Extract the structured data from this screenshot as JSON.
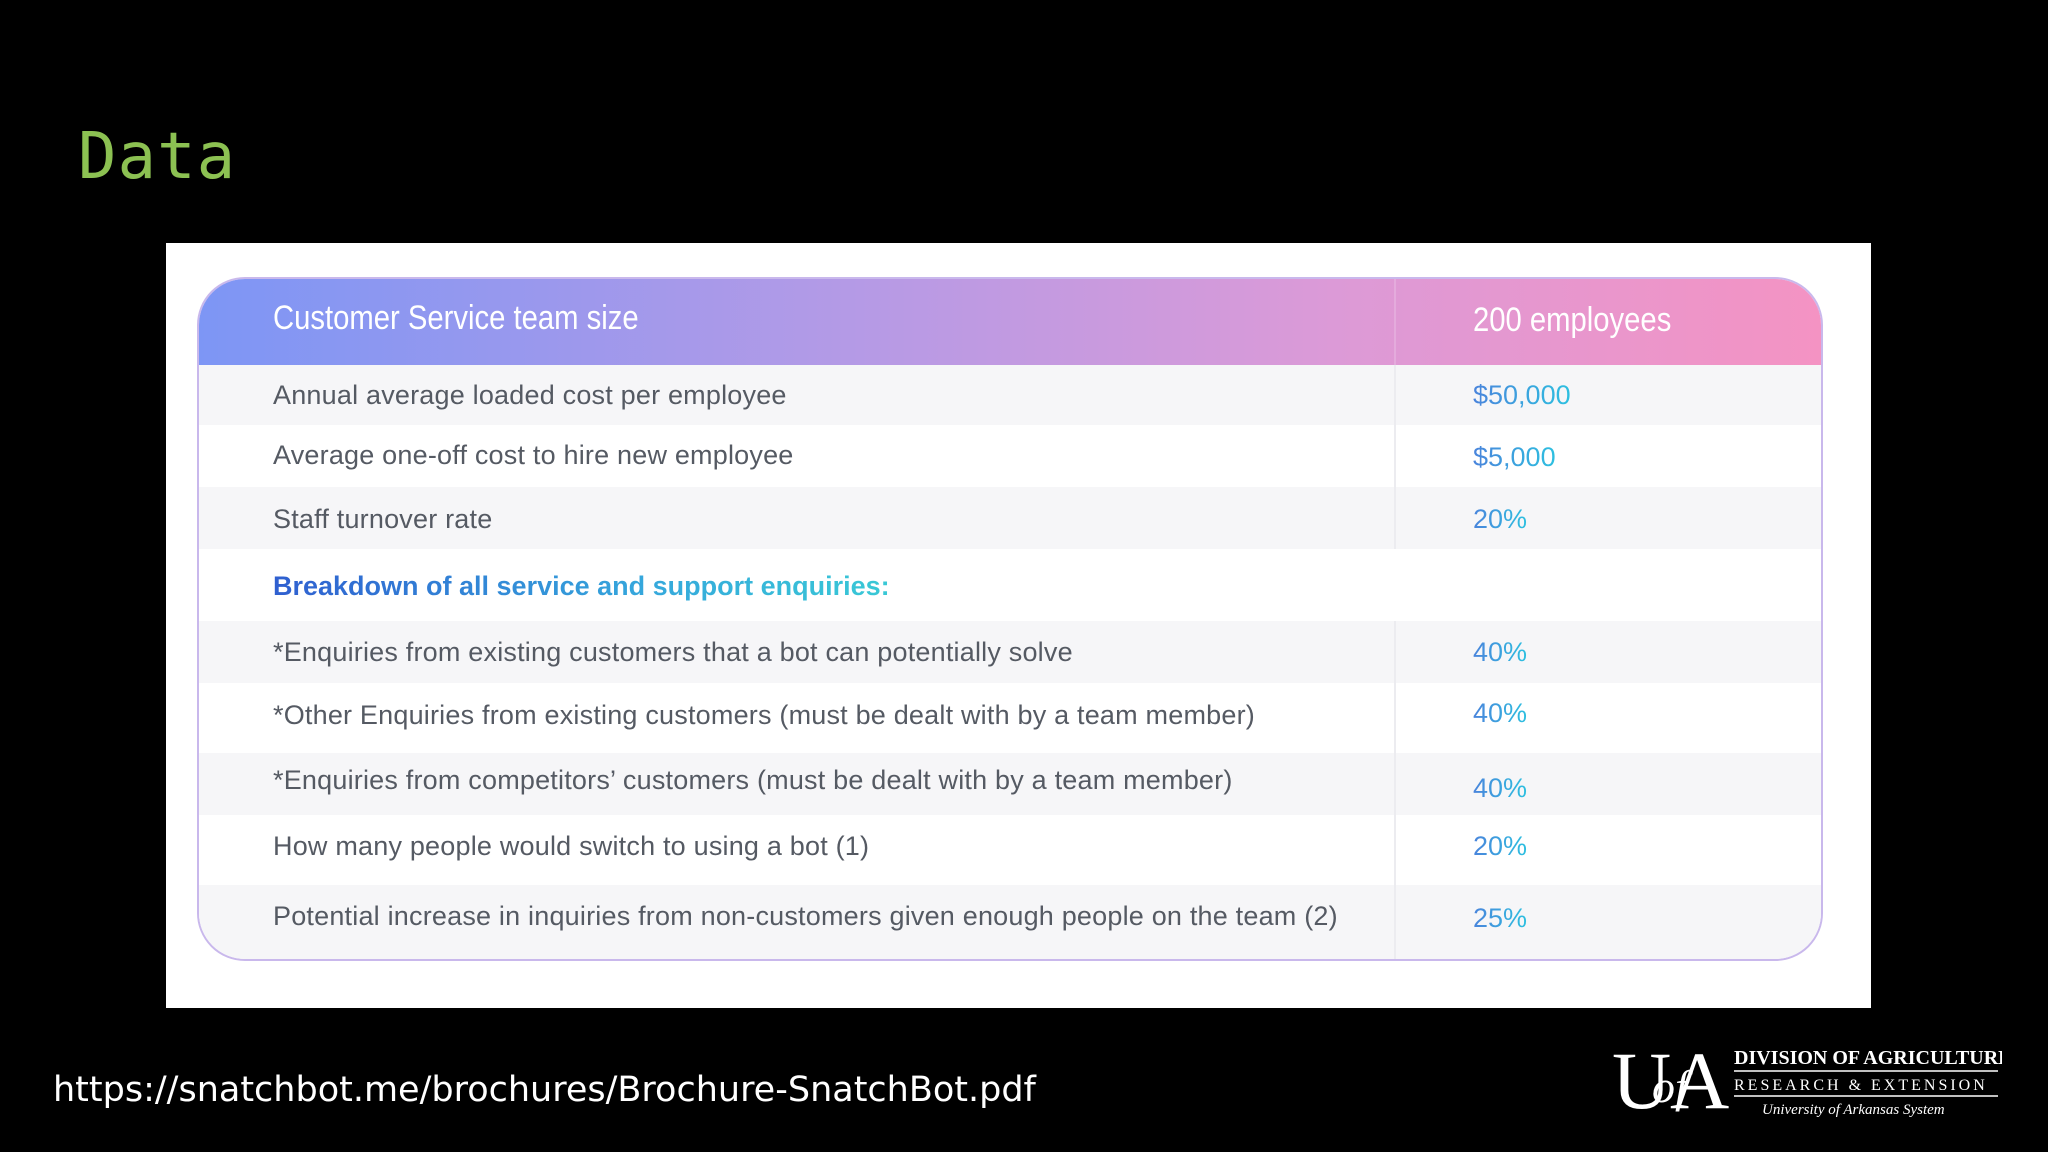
{
  "slide": {
    "title": "Data",
    "source_url": "https://snatchbot.me/brochures/Brochure-SnatchBot.pdf"
  },
  "table": {
    "header_label": "Customer Service team size",
    "header_value": "200 employees",
    "rows": [
      {
        "label": "Annual average loaded cost per employee",
        "value": "$50,000"
      },
      {
        "label": "Average one-off cost to hire new employee",
        "value": "$5,000"
      },
      {
        "label": "Staff turnover rate",
        "value": "20%"
      },
      {
        "label": "Breakdown of all service and support enquiries:",
        "value": ""
      },
      {
        "label": "*Enquiries from existing customers that a bot can potentially solve",
        "value": "40%"
      },
      {
        "label": "*Other Enquiries from existing customers (must be dealt with by a team member)",
        "value": "40%"
      },
      {
        "label": "*Enquiries from competitors’ customers (must be dealt with by a team member)",
        "value": "40%"
      },
      {
        "label": "How many people would switch to using a bot (1)",
        "value": "20%"
      },
      {
        "label": "Potential increase in inquiries from non-customers given enough people on the team (2)",
        "value": "25%"
      }
    ]
  },
  "logo": {
    "monogram": "UofA",
    "line1": "DIVISION OF AGRICULTURE",
    "line2": "RESEARCH & EXTENSION",
    "line3": "University of Arkansas System"
  },
  "colors": {
    "title": "#8cc152",
    "header_gradient_start": "#7d96f5",
    "header_gradient_end": "#f493c3",
    "value_blue": "#4a84dc",
    "value_cyan": "#2dc0e0"
  }
}
